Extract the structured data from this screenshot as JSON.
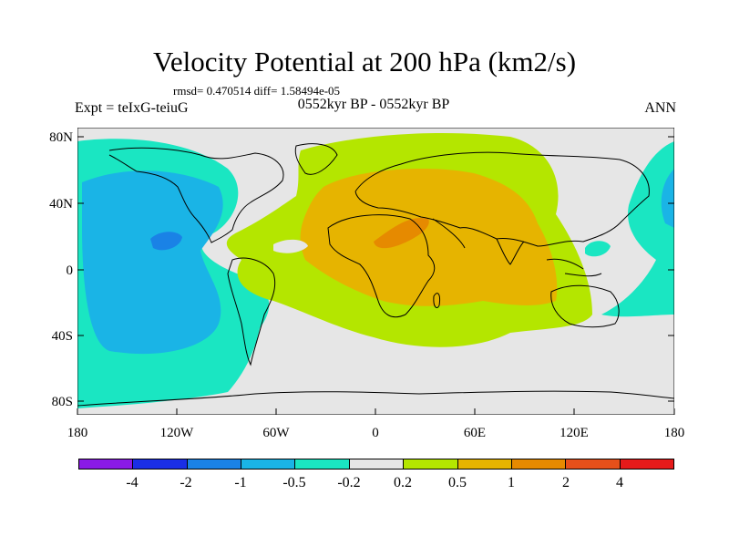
{
  "figure": {
    "title": "Velocity Potential at 200 hPa (km2/s)",
    "stats": "rmsd= 0.470514  diff= 1.58494e-05",
    "experiment": "Expt = teIxG-teiuG",
    "period": "0552kyr BP - 0552kyr BP",
    "season": "ANN"
  },
  "map": {
    "projection": "cylindrical equidistant",
    "lat_ticks": [
      "80N",
      "40N",
      "0",
      "40S",
      "80S"
    ],
    "lon_ticks": [
      "180",
      "120W",
      "60W",
      "0",
      "60E",
      "120E",
      "180"
    ],
    "background_color": "#e6e6e6",
    "coastline_color": "#000000"
  },
  "colorbar": {
    "colors": [
      "#8a1ae6",
      "#1a2ee6",
      "#1a82e6",
      "#1ab4e6",
      "#1ae6c2",
      "#e6e6e6",
      "#b4e600",
      "#e6b400",
      "#e68a00",
      "#e6501a",
      "#e61a1a"
    ],
    "labels": [
      "-4",
      "-2",
      "-1",
      "-0.5",
      "-0.2",
      "0.2",
      "0.5",
      "1",
      "2",
      "4"
    ]
  }
}
